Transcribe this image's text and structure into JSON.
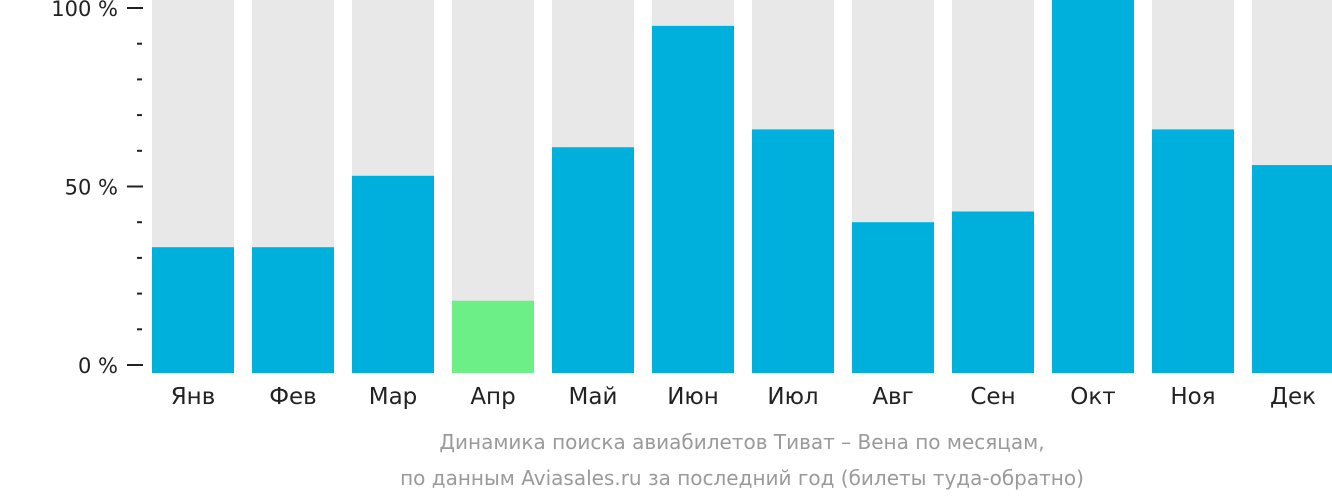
{
  "chart_data": {
    "type": "bar",
    "categories": [
      "Янв",
      "Фев",
      "Мар",
      "Апр",
      "Май",
      "Июн",
      "Июл",
      "Авг",
      "Сен",
      "Окт",
      "Ноя",
      "Дек"
    ],
    "values": [
      33,
      33,
      53,
      18,
      61,
      95,
      66,
      40,
      43,
      100,
      66,
      56
    ],
    "highlight_index": 3,
    "ylim": [
      0,
      100
    ],
    "yticks": [
      {
        "value": 0,
        "label": "0 %"
      },
      {
        "value": 50,
        "label": "50 %"
      },
      {
        "value": 100,
        "label": "100 %"
      }
    ],
    "minor_tick_step": 10,
    "colors": {
      "bar": "#00b0dc",
      "highlight": "#6cef86",
      "background_bar": "#e8e8e8",
      "axis": "#222222"
    }
  },
  "caption": {
    "line1": "Динамика поиска авиабилетов Тиват – Вена по месяцам,",
    "line2": "по данным Aviasales.ru за последний год (билеты туда-обратно)"
  }
}
